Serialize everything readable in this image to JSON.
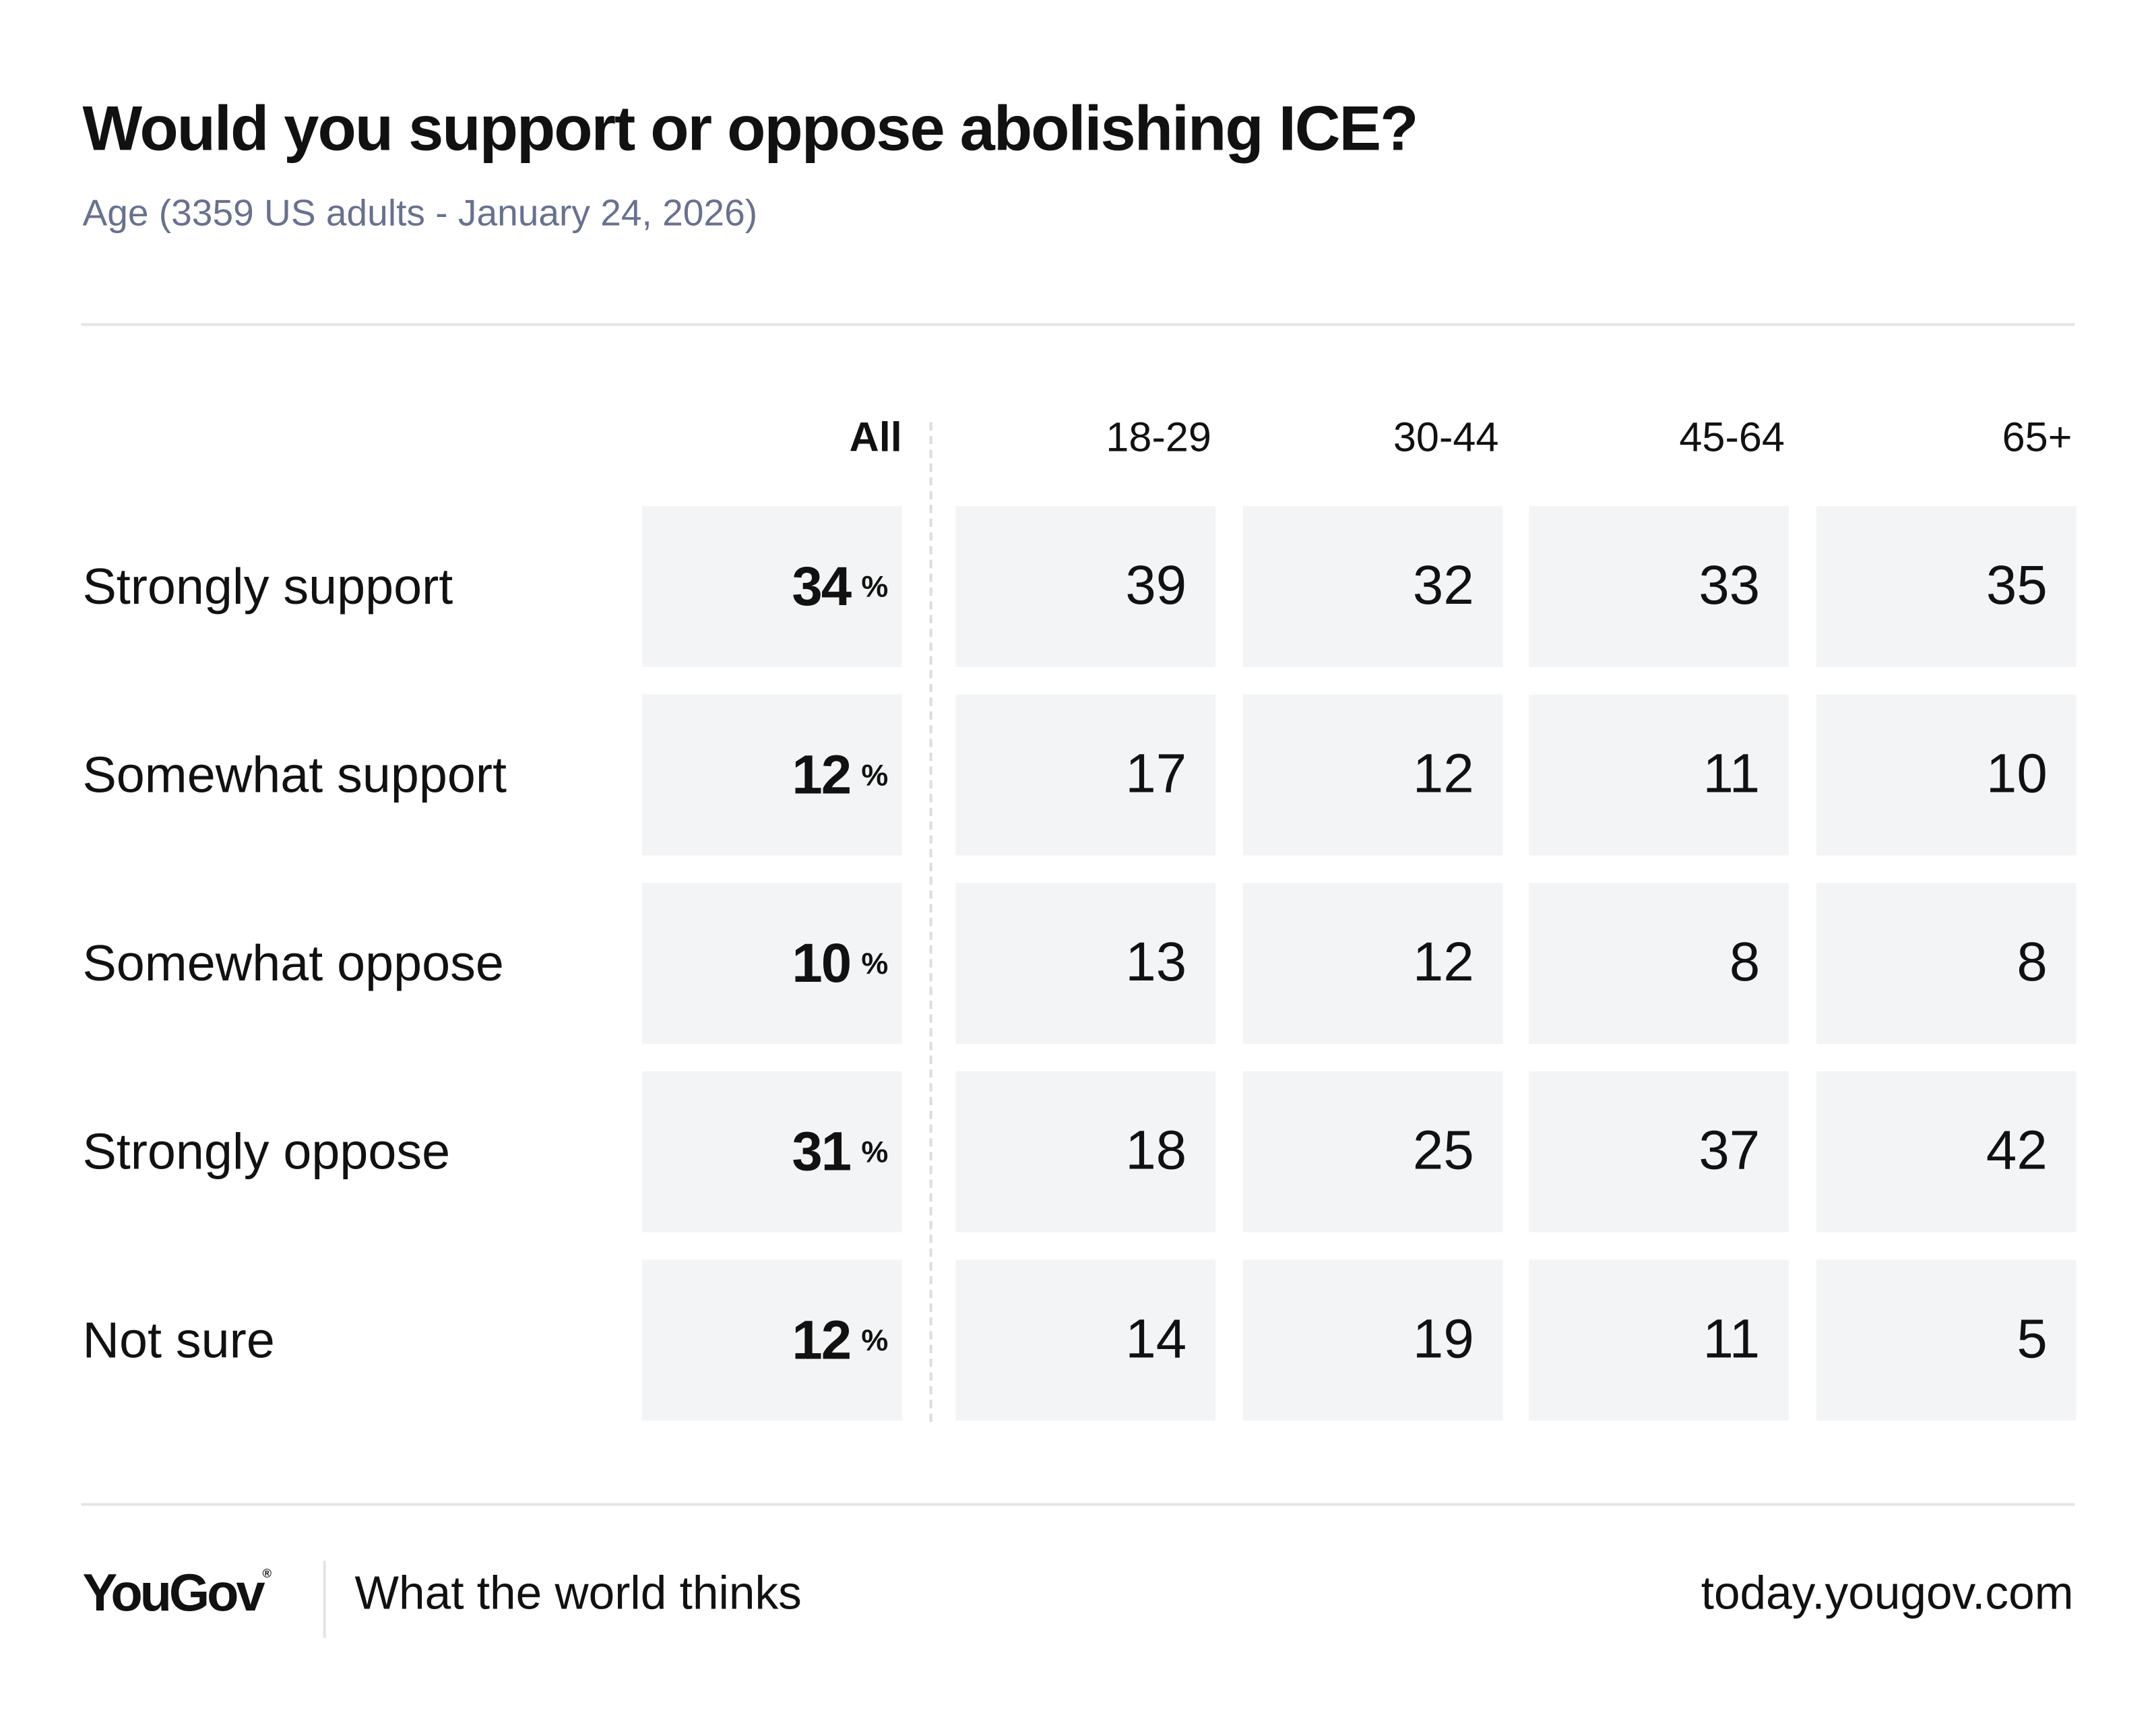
{
  "chart_data": {
    "type": "table",
    "title": "Would you support or oppose abolishing ICE?",
    "subtitle": "Age (3359 US adults - January 24, 2026)",
    "columns": [
      "All",
      "18-29",
      "30-44",
      "45-64",
      "65+"
    ],
    "percent_sign": "%",
    "rows": [
      {
        "label": "Strongly support",
        "values": [
          "34",
          "39",
          "32",
          "33",
          "35"
        ]
      },
      {
        "label": "Somewhat support",
        "values": [
          "12",
          "17",
          "12",
          "11",
          "10"
        ]
      },
      {
        "label": "Somewhat oppose",
        "values": [
          "10",
          "13",
          "12",
          "8",
          "8"
        ]
      },
      {
        "label": "Strongly oppose",
        "values": [
          "31",
          "18",
          "25",
          "37",
          "42"
        ]
      },
      {
        "label": "Not sure",
        "values": [
          "12",
          "14",
          "19",
          "11",
          "5"
        ]
      }
    ]
  },
  "footer": {
    "logo": "YouGov",
    "logo_mark": "®",
    "tagline": "What the world thinks",
    "url": "today.yougov.com"
  },
  "colors": {
    "cell_bg": "#f3f4f6",
    "subtitle": "#68718f",
    "divider": "#e2e4e9"
  }
}
